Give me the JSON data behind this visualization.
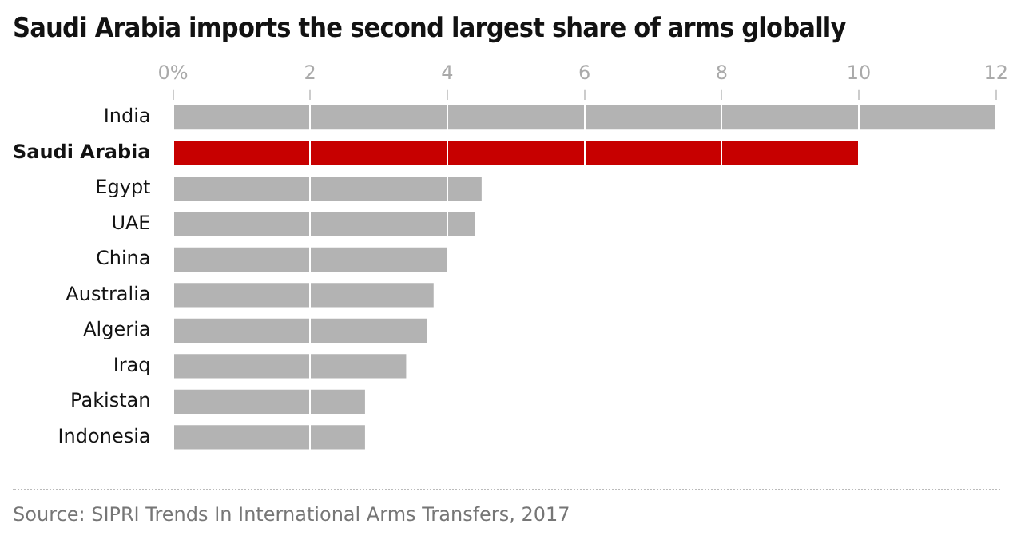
{
  "chart_data": {
    "type": "bar",
    "orientation": "horizontal",
    "title": "Saudi Arabia imports the second largest share of arms globally",
    "categories": [
      "India",
      "Saudi Arabia",
      "Egypt",
      "UAE",
      "China",
      "Australia",
      "Algeria",
      "Iraq",
      "Pakistan",
      "Indonesia"
    ],
    "values": [
      12.0,
      10.0,
      4.5,
      4.4,
      4.0,
      3.8,
      3.7,
      3.4,
      2.8,
      2.8
    ],
    "colors": [
      "#b3b3b3",
      "#c70000",
      "#b3b3b3",
      "#b3b3b3",
      "#b3b3b3",
      "#b3b3b3",
      "#b3b3b3",
      "#b3b3b3",
      "#b3b3b3",
      "#b3b3b3"
    ],
    "xlim": [
      0,
      12
    ],
    "xticks": [
      {
        "value": 0,
        "label": "0%"
      },
      2,
      4,
      6,
      8,
      10,
      12
    ],
    "grid": "x",
    "legend": false,
    "annotations": [
      "Source: SIPRI Trends In International Arms Transfers, 2017"
    ]
  }
}
